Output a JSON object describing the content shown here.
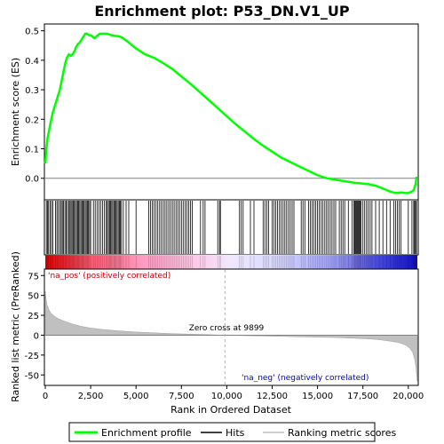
{
  "chart_data": {
    "type": "line",
    "title": "Enrichment plot: P53_DN.V1_UP",
    "x_axis": {
      "label": "Rank in Ordered Dataset",
      "range": [
        0,
        20500
      ],
      "ticks": [
        0,
        2500,
        5000,
        7500,
        10000,
        12500,
        15000,
        17500,
        20000
      ],
      "tick_labels": [
        "0",
        "2,500",
        "5,000",
        "7,500",
        "10,000",
        "12,500",
        "15,000",
        "17,500",
        "20,000"
      ]
    },
    "es_panel": {
      "ylabel": "Enrichment score (ES)",
      "ylim": [
        -0.07,
        0.52
      ],
      "yticks": [
        0.0,
        0.1,
        0.2,
        0.3,
        0.4,
        0.5
      ],
      "ytick_labels": [
        "0.0",
        "0.1",
        "0.2",
        "0.3",
        "0.4",
        "0.5"
      ],
      "series": [
        {
          "name": "Enrichment profile",
          "color": "#00ff00",
          "x": [
            0,
            60,
            120,
            200,
            300,
            400,
            500,
            600,
            700,
            800,
            900,
            1000,
            1100,
            1200,
            1300,
            1400,
            1500,
            1600,
            1700,
            1800,
            1900,
            2000,
            2100,
            2200,
            2300,
            2400,
            2500,
            2600,
            2700,
            2800,
            2900,
            3000,
            3100,
            3200,
            3300,
            3400,
            3500,
            3600,
            3700,
            3800,
            3900,
            4000,
            4200,
            4500,
            5000,
            5500,
            6000,
            6500,
            7000,
            7500,
            8000,
            8500,
            9000,
            9500,
            10000,
            10500,
            11000,
            11500,
            12000,
            12500,
            13000,
            13500,
            14000,
            14500,
            15000,
            15500,
            16000,
            16500,
            17000,
            17500,
            17800,
            18200,
            18600,
            19000,
            19300,
            19600,
            19800,
            20000,
            20200,
            20300,
            20400,
            20450
          ],
          "y": [
            0.05,
            0.1,
            0.135,
            0.16,
            0.19,
            0.22,
            0.24,
            0.26,
            0.28,
            0.3,
            0.33,
            0.36,
            0.39,
            0.41,
            0.42,
            0.415,
            0.42,
            0.43,
            0.445,
            0.455,
            0.46,
            0.47,
            0.48,
            0.49,
            0.49,
            0.485,
            0.485,
            0.48,
            0.475,
            0.48,
            0.485,
            0.49,
            0.49,
            0.49,
            0.49,
            0.49,
            0.488,
            0.486,
            0.484,
            0.483,
            0.482,
            0.482,
            0.478,
            0.465,
            0.44,
            0.42,
            0.408,
            0.39,
            0.37,
            0.345,
            0.32,
            0.293,
            0.265,
            0.238,
            0.21,
            0.183,
            0.158,
            0.133,
            0.11,
            0.09,
            0.07,
            0.055,
            0.04,
            0.025,
            0.01,
            0.0,
            -0.005,
            -0.01,
            -0.015,
            -0.018,
            -0.02,
            -0.025,
            -0.035,
            -0.045,
            -0.05,
            -0.048,
            -0.05,
            -0.05,
            -0.045,
            -0.04,
            -0.02,
            0.005
          ]
        }
      ]
    },
    "hits_panel": {
      "series_name": "Hits",
      "color": "#000000",
      "hits": [
        60,
        120,
        180,
        260,
        340,
        420,
        560,
        640,
        720,
        800,
        880,
        940,
        1010,
        1080,
        1150,
        1220,
        1290,
        1360,
        1420,
        1480,
        1540,
        1600,
        1660,
        1720,
        1780,
        1840,
        1900,
        1960,
        2020,
        2080,
        2140,
        2200,
        2260,
        2320,
        2380,
        2440,
        2500,
        2650,
        2750,
        2850,
        2950,
        3050,
        3150,
        3250,
        3350,
        3420,
        3480,
        3540,
        3600,
        3660,
        3720,
        3780,
        3840,
        3900,
        3960,
        4020,
        4080,
        4140,
        4200,
        4300,
        4450,
        4600,
        5000,
        5700,
        5800,
        5900,
        6000,
        6100,
        6200,
        6300,
        6400,
        6500,
        6600,
        6700,
        6800,
        6900,
        7000,
        7100,
        7200,
        7300,
        7400,
        7500,
        7600,
        7700,
        7800,
        7900,
        8000,
        8100,
        8550,
        8700,
        8800,
        9500,
        9600,
        9650,
        10700,
        10800,
        10900,
        11300,
        11500,
        12000,
        12100,
        12200,
        12300,
        12500,
        12600,
        12700,
        12800,
        12900,
        13000,
        13100,
        13200,
        13300,
        13400,
        13500,
        13600,
        13700,
        14100,
        14200,
        14300,
        14500,
        14600,
        14700,
        14800,
        14900,
        15000,
        15100,
        15200,
        15300,
        15400,
        15500,
        15600,
        15700,
        15800,
        15900,
        16000,
        16200,
        16300,
        16400,
        16500,
        16700,
        16900,
        17000,
        17050,
        17100,
        17150,
        17200,
        17250,
        17300,
        17350,
        17400,
        17500,
        17600,
        17700,
        17800,
        17900,
        18000,
        18200,
        18400,
        18600,
        18800,
        19000,
        19200,
        19300,
        19400,
        19500,
        19600,
        20000,
        20200,
        20300,
        20350,
        20400,
        20450
      ]
    },
    "metric_panel": {
      "ylabel": "Ranked list metric (PreRanked)",
      "ylim": [
        -62,
        82
      ],
      "yticks": [
        -50,
        -25,
        0,
        25,
        50,
        75
      ],
      "ytick_labels": [
        "-50",
        "-25",
        "0",
        "25",
        "50",
        "75"
      ],
      "series_name": "Ranking metric scores",
      "fill_color": "#c0c0c0",
      "x": [
        0,
        50,
        100,
        200,
        300,
        500,
        700,
        1000,
        1500,
        2000,
        2500,
        3000,
        4000,
        5000,
        6000,
        7000,
        8000,
        9000,
        9899,
        11000,
        12000,
        13000,
        14000,
        15000,
        16000,
        17000,
        18000,
        18500,
        19000,
        19400,
        19700,
        19900,
        20100,
        20250,
        20350,
        20420,
        20460,
        20500
      ],
      "y": [
        55,
        45,
        38,
        32,
        28,
        24,
        21,
        18,
        14,
        11,
        9,
        7.5,
        5.5,
        4,
        3,
        2,
        1.3,
        0.6,
        0,
        -0.6,
        -1,
        -1.5,
        -2,
        -2.5,
        -3,
        -3.8,
        -5,
        -6,
        -7.5,
        -9,
        -11,
        -13,
        -17,
        -22,
        -30,
        -40,
        -50,
        -58
      ],
      "zero_cross_label": "Zero cross at 9899",
      "zero_cross": 9899,
      "pos_label": "'na_pos' (positively correlated)",
      "neg_label": "'na_neg' (negatively correlated)"
    },
    "legend": {
      "placement": "bottom",
      "entries": [
        {
          "label": "Enrichment profile",
          "color": "#00ff00"
        },
        {
          "label": "Hits",
          "color": "#000000"
        },
        {
          "label": "Ranking metric scores",
          "color": "#c0c0c0"
        }
      ]
    }
  }
}
